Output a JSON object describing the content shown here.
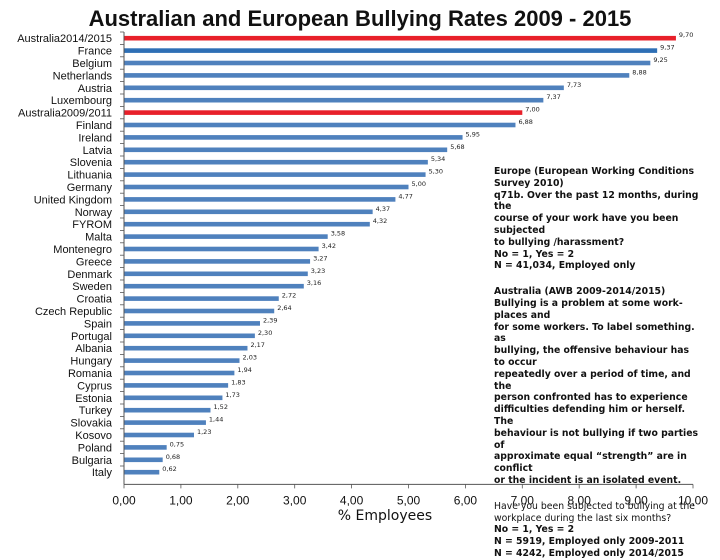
{
  "chart_data": {
    "type": "bar",
    "orientation": "horizontal",
    "title": "Australian and European Bullying Rates 2009 - 2015",
    "xlabel": "% Employees",
    "ylabel": "",
    "xlim": [
      0,
      10
    ],
    "xticks": [
      "0,00",
      "1,00",
      "2,00",
      "3,00",
      "4,00",
      "5,00",
      "6,00",
      "7,00",
      "8,00",
      "9,00",
      "10,00"
    ],
    "grid": false,
    "highlight_color": "#e8202a",
    "bar_color": "#4f81bd",
    "first_europe_color": "#2e6fb5",
    "categories": [
      "Australia2014/2015",
      "France",
      "Belgium",
      "Netherlands",
      "Austria",
      "Luxembourg",
      "Australia2009/2011",
      "Finland",
      "Ireland",
      "Latvia",
      "Slovenia",
      "Lithuania",
      "Germany",
      "United Kingdom",
      "Norway",
      "FYROM",
      "Malta",
      "Montenegro",
      "Greece",
      "Denmark",
      "Sweden",
      "Croatia",
      "Czech Republic",
      "Spain",
      "Portugal",
      "Albania",
      "Hungary",
      "Romania",
      "Cyprus",
      "Estonia",
      "Turkey",
      "Slovakia",
      "Kosovo",
      "Poland",
      "Bulgaria",
      "Italy"
    ],
    "values": [
      9.7,
      9.37,
      9.25,
      8.88,
      7.73,
      7.37,
      7.0,
      6.88,
      5.95,
      5.68,
      5.34,
      5.3,
      5.0,
      4.77,
      4.37,
      4.32,
      3.58,
      3.42,
      3.27,
      3.23,
      3.16,
      2.72,
      2.64,
      2.39,
      2.3,
      2.17,
      2.03,
      1.94,
      1.83,
      1.73,
      1.52,
      1.44,
      1.23,
      0.75,
      0.68,
      0.62
    ],
    "value_labels": [
      "9,70",
      "9,37",
      "9,25",
      "8,88",
      "7,73",
      "7,37",
      "7,00",
      "6,88",
      "5,95",
      "5,68",
      "5,34",
      "5,30",
      "5,00",
      "4,77",
      "4,37",
      "4,32",
      "3,58",
      "3,42",
      "3,27",
      "3,23",
      "3,16",
      "2,72",
      "2,64",
      "2,39",
      "2,30",
      "2,17",
      "2,03",
      "1,94",
      "1,83",
      "1,73",
      "1,52",
      "1,44",
      "1,23",
      "0,75",
      "0,68",
      "0,62"
    ],
    "highlighted": [
      "Australia2014/2015",
      "Australia2009/2011"
    ]
  },
  "notes": {
    "europe": [
      "Europe (European Working Conditions",
      "Survey 2010)",
      "q71b. Over the past 12 months, during the",
      "course of your work  have you been subjected",
      "to bullying /harassment?",
      "No = 1, Yes = 2",
      "N = 41,034, Employed only"
    ],
    "australia": [
      "Australia (AWB 2009-2014/2015)",
      "Bullying is a problem at some work-places and",
      "for some workers. To label something. as",
      "bullying, the offensive behaviour has to occur",
      "repeatedly over a period of time, and the",
      "person confronted has to experience",
      "difficulties defending him or herself. The",
      "behaviour is not bullying if two parties of",
      "approximate equal “strength” are in conflict",
      "or the incident is an isolated event."
    ],
    "question": [
      "Have you been subjected to bullying at the",
      "workplace during the last six months?",
      "No = 1, Yes = 2",
      "N = 5919, Employed only 2009-2011",
      "N = 4242, Employed only 2014/2015"
    ]
  }
}
